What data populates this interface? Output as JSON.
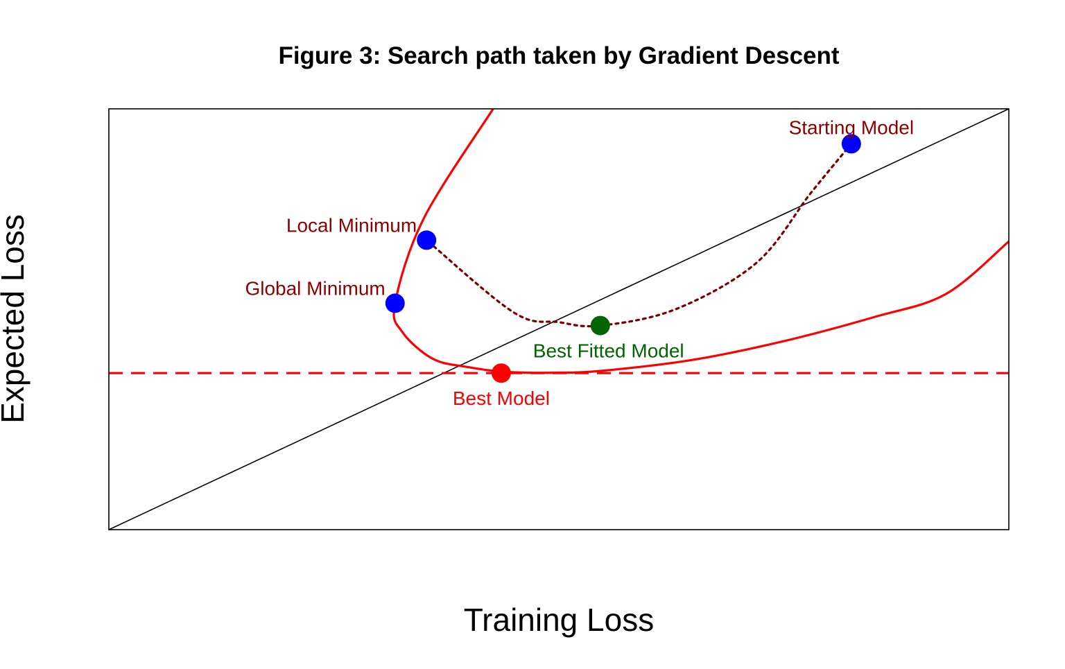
{
  "chart_data": {
    "type": "scatter",
    "title": "Figure 3: Search path taken by Gradient Descent",
    "xlabel": "Training Loss",
    "ylabel": "Expected Loss",
    "xlim": [
      0,
      10
    ],
    "ylim": [
      0,
      10
    ],
    "axis_ticks": false,
    "grid": false,
    "legend": "none",
    "colors": {
      "curve": "#ff0000",
      "path": "#7a0000",
      "blue_point": "#0000ff",
      "best_point": "#ff0000",
      "fitted_point": "#006400",
      "label_dark": "#8b0000",
      "label_red": "#ff0000",
      "label_green": "#006400",
      "diagonal": "#000000"
    },
    "reference_lines": [
      {
        "kind": "diagonal",
        "from": [
          0,
          0
        ],
        "to": [
          10,
          10
        ],
        "style": "solid"
      },
      {
        "kind": "horizontal",
        "y": 3.72,
        "style": "dashed"
      }
    ],
    "curve": {
      "style": "solid",
      "x": [
        4.27,
        3.5,
        3.18,
        3.26,
        3.6,
        4.0,
        4.4,
        4.95,
        5.5,
        6.5,
        7.5,
        8.5,
        9.3,
        10.0
      ],
      "y": [
        10.0,
        7.4,
        5.38,
        4.7,
        4.06,
        3.86,
        3.75,
        3.73,
        3.78,
        4.04,
        4.48,
        5.05,
        5.6,
        6.85
      ]
    },
    "search_path": {
      "style": "dotted",
      "x": [
        8.25,
        7.8,
        7.2,
        6.3,
        5.46,
        5.0,
        4.5,
        3.53
      ],
      "y": [
        9.17,
        8.0,
        6.35,
        5.24,
        4.85,
        4.93,
        5.16,
        6.88
      ]
    },
    "points": [
      {
        "name": "Starting Model",
        "x": 8.25,
        "y": 9.17,
        "color": "#0000ff",
        "label_color": "#8b0000",
        "label_pos": "above"
      },
      {
        "name": "Local Minimum",
        "x": 3.53,
        "y": 6.88,
        "color": "#0000ff",
        "label_color": "#8b0000",
        "label_pos": "upper-left"
      },
      {
        "name": "Global Minimum",
        "x": 3.18,
        "y": 5.38,
        "color": "#0000ff",
        "label_color": "#8b0000",
        "label_pos": "upper-left"
      },
      {
        "name": "Best Fitted Model",
        "x": 5.46,
        "y": 4.85,
        "color": "#006400",
        "label_color": "#006400",
        "label_pos": "below"
      },
      {
        "name": "Best Model",
        "x": 4.36,
        "y": 3.72,
        "color": "#ff0000",
        "label_color": "#ff0000",
        "label_pos": "below"
      }
    ]
  }
}
